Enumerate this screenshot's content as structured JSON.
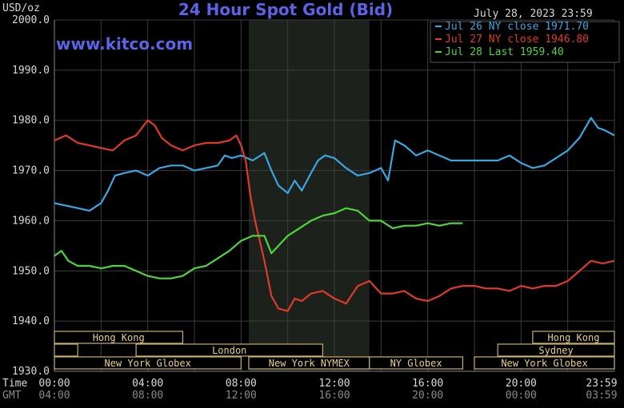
{
  "chart_data": {
    "type": "line",
    "title": "24 Hour Spot Gold (Bid)",
    "datetime": "July 28, 2023 23:59",
    "watermark": "www.kitco.com",
    "ylabel": "USD/oz",
    "ylim": [
      1930,
      2000
    ],
    "yticks": [
      "2000.0",
      "1990.0",
      "1980.0",
      "1970.0",
      "1960.0",
      "1950.0",
      "1940.0",
      "1930.0"
    ],
    "xlim": [
      0,
      24
    ],
    "xticks": [
      {
        "t": "00:00",
        "g": "04:00"
      },
      {
        "t": "04:00",
        "g": "08:00"
      },
      {
        "t": "08:00",
        "g": "12:00"
      },
      {
        "t": "12:00",
        "g": "16:00"
      },
      {
        "t": "16:00",
        "g": "20:00"
      },
      {
        "t": "20:00",
        "g": "00:00"
      },
      {
        "t": "23:59",
        "g": "03:59"
      }
    ],
    "axis_row_labels": [
      "Time",
      "GMT"
    ],
    "grid": true,
    "legend_position": "top-right",
    "nymex_highlight_hours": [
      8.33,
      13.5
    ],
    "sessions": [
      {
        "label": "Hong Kong",
        "start": 0,
        "end": 5.5,
        "row": 0
      },
      {
        "label": "Hong Kong",
        "start": 20.5,
        "end": 24,
        "row": 0
      },
      {
        "label": "",
        "start": 0,
        "end": 1,
        "row": 1
      },
      {
        "label": "London",
        "start": 3.5,
        "end": 11.5,
        "row": 1
      },
      {
        "label": "Sydney",
        "start": 19,
        "end": 24,
        "row": 1
      },
      {
        "label": "New York Globex",
        "start": 0,
        "end": 8,
        "row": 2
      },
      {
        "label": "New York NYMEX",
        "start": 8.33,
        "end": 13.5,
        "row": 2
      },
      {
        "label": "NY Globex",
        "start": 13.5,
        "end": 17.5,
        "row": 2
      },
      {
        "label": "New York Globex",
        "start": 18,
        "end": 24,
        "row": 2
      }
    ],
    "series": [
      {
        "name": "Jul 26 NY close 1971.70",
        "color": "#3aa6e2",
        "x": [
          0,
          0.5,
          1,
          1.5,
          2,
          2.3,
          2.6,
          3,
          3.5,
          4,
          4.5,
          5,
          5.5,
          6,
          6.5,
          7,
          7.3,
          7.6,
          8,
          8.5,
          9,
          9.3,
          9.6,
          10,
          10.3,
          10.6,
          11,
          11.3,
          11.6,
          12,
          12.5,
          13,
          13.5,
          14,
          14.3,
          14.6,
          15,
          15.5,
          16,
          16.5,
          17,
          17.5,
          18,
          18.5,
          19,
          19.5,
          20,
          20.5,
          21,
          21.5,
          22,
          22.5,
          23,
          23.3,
          23.6,
          24
        ],
        "values": [
          1963.5,
          1963,
          1962.5,
          1962,
          1963.5,
          1966,
          1969,
          1969.5,
          1970,
          1969,
          1970.5,
          1971,
          1971,
          1970,
          1970.5,
          1971,
          1973,
          1972.5,
          1973,
          1972,
          1973.5,
          1970,
          1967,
          1965.5,
          1968,
          1966,
          1969.5,
          1972,
          1973,
          1972.5,
          1970.5,
          1969,
          1969.5,
          1970.5,
          1968,
          1976,
          1975,
          1973,
          1974,
          1973,
          1972,
          1972,
          1972,
          1972,
          1972,
          1973,
          1971.5,
          1970.5,
          1971,
          1972.5,
          1974,
          1976.5,
          1980.5,
          1978.5,
          1978,
          1977
        ]
      },
      {
        "name": "Jul 27 NY close 1946.80",
        "color": "#e03a2a",
        "x": [
          0,
          0.5,
          1,
          1.5,
          2,
          2.5,
          3,
          3.5,
          4,
          4.3,
          4.6,
          5,
          5.5,
          6,
          6.5,
          7,
          7.5,
          7.8,
          8,
          8.2,
          8.4,
          8.6,
          8.8,
          9,
          9.3,
          9.6,
          10,
          10.3,
          10.6,
          11,
          11.5,
          12,
          12.5,
          13,
          13.5,
          14,
          14.5,
          15,
          15.5,
          16,
          16.5,
          17,
          17.5,
          18,
          18.5,
          19,
          19.5,
          20,
          20.5,
          21,
          21.5,
          22,
          22.5,
          23,
          23.5,
          24
        ],
        "values": [
          1976,
          1977,
          1975.5,
          1975,
          1974.5,
          1974,
          1976,
          1977,
          1980,
          1979,
          1976.5,
          1975,
          1974,
          1975,
          1975.5,
          1975.5,
          1976,
          1977,
          1975,
          1972,
          1965,
          1960,
          1956,
          1952,
          1945,
          1942.5,
          1942,
          1944.5,
          1944,
          1945.5,
          1946,
          1944.5,
          1943.5,
          1947,
          1948,
          1945.5,
          1945.5,
          1946,
          1944.5,
          1944,
          1945,
          1946.5,
          1947,
          1947,
          1946.5,
          1946.5,
          1946,
          1947,
          1946.5,
          1947,
          1947,
          1948,
          1950,
          1952,
          1951.5,
          1952
        ]
      },
      {
        "name": "Jul 28 Last 1959.40",
        "color": "#4fd63a",
        "x": [
          0,
          0.3,
          0.6,
          1,
          1.5,
          2,
          2.5,
          3,
          3.5,
          4,
          4.5,
          5,
          5.5,
          6,
          6.5,
          7,
          7.5,
          8,
          8.5,
          9,
          9.3,
          9.6,
          10,
          10.5,
          11,
          11.5,
          12,
          12.5,
          13,
          13.5,
          14,
          14.5,
          15,
          15.5,
          16,
          16.5,
          17,
          17.5
        ],
        "values": [
          1953,
          1954,
          1952,
          1951,
          1951,
          1950.5,
          1951,
          1951,
          1950,
          1949,
          1948.5,
          1948.5,
          1949,
          1950.5,
          1951,
          1952.5,
          1954,
          1956,
          1957,
          1957,
          1953.5,
          1955,
          1957,
          1958.5,
          1960,
          1961,
          1961.5,
          1962.5,
          1962,
          1960,
          1960,
          1958.5,
          1959,
          1959,
          1959.5,
          1959,
          1959.5,
          1959.5
        ]
      }
    ]
  }
}
